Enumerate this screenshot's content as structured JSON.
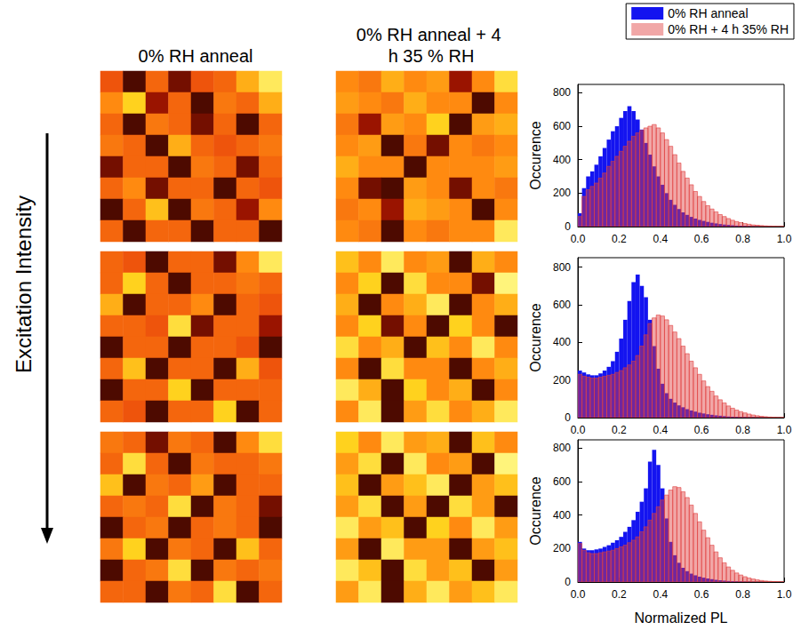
{
  "row_label": "Excitation Intensity",
  "chart_data": [
    {
      "type": "heatmap",
      "title": "0% RH anneal",
      "tick_labels": false,
      "color_range": [
        0,
        1
      ],
      "color": [
        "#000000",
        "#9a1400",
        "#e8420a",
        "#ff8a10",
        "#ffd21e",
        "#ffff9a"
      ],
      "cells": [
        [
          0.45,
          0.1,
          0.5,
          0.15,
          0.45,
          0.5,
          0.7,
          0.9
        ],
        [
          0.6,
          0.8,
          0.2,
          0.5,
          0.1,
          0.55,
          0.5,
          0.7
        ],
        [
          0.5,
          0.1,
          0.55,
          0.5,
          0.15,
          0.5,
          0.1,
          0.5
        ],
        [
          0.55,
          0.5,
          0.1,
          0.7,
          0.5,
          0.45,
          0.5,
          0.55
        ],
        [
          0.15,
          0.5,
          0.5,
          0.1,
          0.55,
          0.5,
          0.15,
          0.5
        ],
        [
          0.5,
          0.6,
          0.15,
          0.5,
          0.5,
          0.1,
          0.5,
          0.45
        ],
        [
          0.1,
          0.5,
          0.75,
          0.1,
          0.55,
          0.5,
          0.2,
          0.6
        ],
        [
          0.5,
          0.1,
          0.5,
          0.5,
          0.1,
          0.5,
          0.5,
          0.1
        ]
      ]
    },
    {
      "type": "heatmap",
      "title": "0% RH anneal + 4 h 35 % RH",
      "tick_labels": false,
      "color_range": [
        0,
        1
      ],
      "color": [
        "#000000",
        "#9a1400",
        "#e8420a",
        "#ff8a10",
        "#ffd21e",
        "#ffff9a"
      ],
      "cells": [
        [
          0.6,
          0.55,
          0.7,
          0.6,
          0.65,
          0.2,
          0.6,
          0.85
        ],
        [
          0.65,
          0.6,
          0.55,
          0.7,
          0.6,
          0.6,
          0.1,
          0.6
        ],
        [
          0.55,
          0.2,
          0.65,
          0.6,
          0.8,
          0.1,
          0.65,
          0.7
        ],
        [
          0.6,
          0.65,
          0.1,
          0.55,
          0.15,
          0.6,
          0.55,
          0.6
        ],
        [
          0.7,
          0.6,
          0.6,
          0.1,
          0.6,
          0.6,
          0.6,
          0.65
        ],
        [
          0.6,
          0.15,
          0.1,
          0.65,
          0.6,
          0.15,
          0.6,
          0.55
        ],
        [
          0.55,
          0.6,
          0.2,
          0.7,
          0.65,
          0.6,
          0.1,
          0.6
        ],
        [
          0.6,
          0.55,
          0.1,
          0.6,
          0.55,
          0.6,
          0.6,
          0.9
        ]
      ]
    },
    {
      "type": "heatmap",
      "tick_labels": false,
      "color_range": [
        0,
        1
      ],
      "color": [
        "#000000",
        "#9a1400",
        "#e8420a",
        "#ff8a10",
        "#ffd21e",
        "#ffff9a"
      ],
      "cells": [
        [
          0.5,
          0.45,
          0.1,
          0.5,
          0.5,
          0.15,
          0.6,
          0.9
        ],
        [
          0.5,
          0.8,
          0.5,
          0.1,
          0.5,
          0.5,
          0.55,
          0.5
        ],
        [
          0.7,
          0.1,
          0.5,
          0.5,
          0.6,
          0.1,
          0.5,
          0.45
        ],
        [
          0.5,
          0.5,
          0.45,
          0.85,
          0.15,
          0.5,
          0.5,
          0.2
        ],
        [
          0.1,
          0.5,
          0.5,
          0.1,
          0.5,
          0.5,
          0.45,
          0.1
        ],
        [
          0.5,
          0.75,
          0.1,
          0.5,
          0.5,
          0.1,
          0.7,
          0.45
        ],
        [
          0.1,
          0.5,
          0.5,
          0.8,
          0.1,
          0.5,
          0.5,
          0.5
        ],
        [
          0.5,
          0.45,
          0.1,
          0.5,
          0.5,
          0.8,
          0.1,
          0.5
        ]
      ]
    },
    {
      "type": "heatmap",
      "tick_labels": false,
      "color_range": [
        0,
        1
      ],
      "color": [
        "#000000",
        "#9a1400",
        "#e8420a",
        "#ff8a10",
        "#ffd21e",
        "#ffff9a"
      ],
      "cells": [
        [
          0.75,
          0.6,
          0.9,
          0.6,
          0.65,
          0.1,
          0.7,
          0.6
        ],
        [
          0.6,
          0.8,
          0.1,
          0.85,
          0.6,
          0.6,
          0.15,
          0.95
        ],
        [
          0.7,
          0.1,
          0.6,
          0.7,
          0.9,
          0.1,
          0.6,
          0.7
        ],
        [
          0.6,
          0.8,
          0.15,
          0.6,
          0.1,
          0.8,
          0.6,
          0.1
        ],
        [
          0.85,
          0.6,
          0.7,
          0.1,
          0.75,
          0.6,
          0.9,
          0.6
        ],
        [
          0.6,
          0.1,
          0.85,
          0.6,
          0.6,
          0.1,
          0.6,
          0.7
        ],
        [
          0.9,
          0.7,
          0.1,
          0.8,
          0.6,
          0.7,
          0.1,
          0.6
        ],
        [
          0.6,
          0.9,
          0.1,
          0.65,
          0.85,
          0.6,
          0.7,
          0.9
        ]
      ]
    },
    {
      "type": "heatmap",
      "tick_labels": false,
      "color_range": [
        0,
        1
      ],
      "color": [
        "#000000",
        "#9a1400",
        "#e8420a",
        "#ff8a10",
        "#ffd21e",
        "#ffff9a"
      ],
      "cells": [
        [
          0.55,
          0.5,
          0.15,
          0.55,
          0.5,
          0.1,
          0.6,
          0.85
        ],
        [
          0.5,
          0.85,
          0.5,
          0.1,
          0.55,
          0.5,
          0.5,
          0.55
        ],
        [
          0.75,
          0.1,
          0.55,
          0.5,
          0.65,
          0.1,
          0.5,
          0.5
        ],
        [
          0.5,
          0.55,
          0.5,
          0.85,
          0.1,
          0.55,
          0.5,
          0.15
        ],
        [
          0.1,
          0.5,
          0.55,
          0.1,
          0.5,
          0.55,
          0.5,
          0.1
        ],
        [
          0.55,
          0.8,
          0.1,
          0.55,
          0.5,
          0.1,
          0.75,
          0.5
        ],
        [
          0.1,
          0.5,
          0.55,
          0.85,
          0.1,
          0.55,
          0.5,
          0.55
        ],
        [
          0.5,
          0.5,
          0.1,
          0.55,
          0.5,
          0.85,
          0.1,
          0.5
        ]
      ]
    },
    {
      "type": "heatmap",
      "tick_labels": false,
      "color_range": [
        0,
        1
      ],
      "color": [
        "#000000",
        "#9a1400",
        "#e8420a",
        "#ff8a10",
        "#ffd21e",
        "#ffff9a"
      ],
      "cells": [
        [
          0.8,
          0.6,
          0.9,
          0.65,
          0.7,
          0.1,
          0.75,
          0.6
        ],
        [
          0.65,
          0.85,
          0.1,
          0.9,
          0.6,
          0.65,
          0.1,
          0.95
        ],
        [
          0.75,
          0.1,
          0.65,
          0.75,
          0.9,
          0.1,
          0.65,
          0.75
        ],
        [
          0.65,
          0.85,
          0.1,
          0.65,
          0.1,
          0.85,
          0.65,
          0.1
        ],
        [
          0.9,
          0.65,
          0.75,
          0.1,
          0.8,
          0.6,
          0.9,
          0.65
        ],
        [
          0.65,
          0.1,
          0.9,
          0.65,
          0.65,
          0.1,
          0.65,
          0.75
        ],
        [
          0.9,
          0.75,
          0.1,
          0.85,
          0.65,
          0.75,
          0.1,
          0.65
        ],
        [
          0.65,
          0.9,
          0.1,
          0.7,
          0.9,
          0.65,
          0.75,
          0.9
        ]
      ]
    },
    {
      "type": "histogram",
      "legend": "top",
      "ylabel": "Occurence",
      "bins": [
        0,
        0.02,
        0.04,
        0.06,
        0.08,
        0.1,
        0.12,
        0.14,
        0.16,
        0.18,
        0.2,
        0.22,
        0.24,
        0.26,
        0.28,
        0.3,
        0.32,
        0.34,
        0.36,
        0.38,
        0.4,
        0.42,
        0.44,
        0.46,
        0.48,
        0.5,
        0.52,
        0.54,
        0.56,
        0.58,
        0.6,
        0.62,
        0.64,
        0.66,
        0.68,
        0.7,
        0.72,
        0.74,
        0.76,
        0.78,
        0.8,
        0.82,
        0.84,
        0.86,
        0.88,
        0.9,
        0.92,
        0.94,
        0.96,
        0.98,
        1
      ],
      "xlim": [
        0,
        1
      ],
      "xticks": [
        {
          "value": 0,
          "label": "0.0"
        },
        0.2,
        0.4,
        0.6,
        0.8,
        {
          "value": 1,
          "label": "1.0"
        }
      ],
      "ylim": [
        0,
        850
      ],
      "yticks": [
        0,
        200,
        400,
        600,
        800
      ],
      "series": [
        {
          "name": "0% RH anneal",
          "color": "#1414f0",
          "values": [
            80,
            230,
            300,
            330,
            370,
            420,
            470,
            520,
            570,
            600,
            650,
            690,
            720,
            690,
            640,
            580,
            500,
            430,
            360,
            300,
            250,
            200,
            160,
            130,
            105,
            85,
            70,
            58,
            48,
            40,
            34,
            28,
            23,
            19,
            15,
            12,
            10,
            8,
            6,
            5,
            4,
            3,
            2,
            2,
            1,
            1,
            1,
            0,
            0,
            0
          ]
        },
        {
          "name": "0% RH + 4 h 35% RH",
          "color": "#e03c3c",
          "values": [
            60,
            180,
            220,
            240,
            260,
            290,
            320,
            360,
            390,
            420,
            450,
            480,
            510,
            540,
            560,
            575,
            590,
            600,
            610,
            590,
            560,
            520,
            480,
            430,
            380,
            330,
            290,
            250,
            210,
            180,
            150,
            125,
            105,
            88,
            72,
            60,
            48,
            38,
            30,
            24,
            18,
            14,
            10,
            8,
            6,
            4,
            3,
            2,
            1,
            1
          ]
        }
      ]
    },
    {
      "type": "histogram",
      "ylabel": "Occurence",
      "bins": [
        0,
        0.02,
        0.04,
        0.06,
        0.08,
        0.1,
        0.12,
        0.14,
        0.16,
        0.18,
        0.2,
        0.22,
        0.24,
        0.26,
        0.28,
        0.3,
        0.32,
        0.34,
        0.36,
        0.38,
        0.4,
        0.42,
        0.44,
        0.46,
        0.48,
        0.5,
        0.52,
        0.54,
        0.56,
        0.58,
        0.6,
        0.62,
        0.64,
        0.66,
        0.68,
        0.7,
        0.72,
        0.74,
        0.76,
        0.78,
        0.8,
        0.82,
        0.84,
        0.86,
        0.88,
        0.9,
        0.92,
        0.94,
        0.96,
        0.98,
        1
      ],
      "xlim": [
        0,
        1
      ],
      "xticks": [
        {
          "value": 0,
          "label": "0.0"
        },
        0.2,
        0.4,
        0.6,
        0.8,
        {
          "value": 1,
          "label": "1.0"
        }
      ],
      "ylim": [
        0,
        850
      ],
      "yticks": [
        0,
        200,
        400,
        600,
        800
      ],
      "series": [
        {
          "name": "0% RH anneal",
          "color": "#1414f0",
          "values": [
            250,
            240,
            230,
            225,
            225,
            235,
            250,
            270,
            300,
            350,
            420,
            520,
            620,
            720,
            760,
            700,
            640,
            520,
            380,
            260,
            180,
            130,
            100,
            80,
            65,
            55,
            45,
            38,
            32,
            26,
            22,
            18,
            15,
            12,
            10,
            8,
            6,
            5,
            4,
            3,
            3,
            2,
            2,
            1,
            1,
            1,
            0,
            0,
            0,
            0
          ]
        },
        {
          "name": "0% RH + 4 h 35% RH",
          "color": "#e03c3c",
          "values": [
            230,
            220,
            215,
            210,
            210,
            215,
            220,
            225,
            230,
            240,
            250,
            265,
            280,
            300,
            330,
            380,
            440,
            500,
            530,
            545,
            540,
            520,
            490,
            455,
            420,
            380,
            340,
            300,
            265,
            230,
            195,
            165,
            140,
            115,
            95,
            78,
            62,
            50,
            40,
            32,
            25,
            19,
            14,
            10,
            7,
            5,
            3,
            2,
            1,
            1
          ]
        }
      ]
    },
    {
      "type": "histogram",
      "ylabel": "Occurence",
      "xlabel": "Normalized PL",
      "bins": [
        0,
        0.02,
        0.04,
        0.06,
        0.08,
        0.1,
        0.12,
        0.14,
        0.16,
        0.18,
        0.2,
        0.22,
        0.24,
        0.26,
        0.28,
        0.3,
        0.32,
        0.34,
        0.36,
        0.38,
        0.4,
        0.42,
        0.44,
        0.46,
        0.48,
        0.5,
        0.52,
        0.54,
        0.56,
        0.58,
        0.6,
        0.62,
        0.64,
        0.66,
        0.68,
        0.7,
        0.72,
        0.74,
        0.76,
        0.78,
        0.8,
        0.82,
        0.84,
        0.86,
        0.88,
        0.9,
        0.92,
        0.94,
        0.96,
        0.98,
        1
      ],
      "xlim": [
        0,
        1
      ],
      "xticks": [
        {
          "value": 0,
          "label": "0.0"
        },
        0.2,
        0.4,
        0.6,
        0.8,
        {
          "value": 1,
          "label": "1.0"
        }
      ],
      "ylim": [
        0,
        850
      ],
      "yticks": [
        0,
        200,
        400,
        600,
        800
      ],
      "series": [
        {
          "name": "0% RH anneal",
          "color": "#1414f0",
          "values": [
            240,
            200,
            190,
            190,
            195,
            200,
            210,
            220,
            235,
            250,
            270,
            300,
            330,
            370,
            420,
            480,
            560,
            720,
            790,
            700,
            560,
            380,
            240,
            160,
            115,
            85,
            65,
            50,
            40,
            32,
            26,
            21,
            17,
            13,
            10,
            8,
            6,
            5,
            4,
            3,
            2,
            2,
            1,
            1,
            1,
            0,
            0,
            0,
            0,
            0
          ]
        },
        {
          "name": "0% RH + 4 h 35% RH",
          "color": "#e03c3c",
          "values": [
            230,
            190,
            175,
            170,
            170,
            175,
            180,
            185,
            190,
            200,
            210,
            220,
            235,
            250,
            270,
            300,
            330,
            370,
            410,
            450,
            490,
            520,
            550,
            570,
            565,
            540,
            505,
            460,
            410,
            360,
            310,
            265,
            220,
            180,
            145,
            115,
            90,
            70,
            54,
            42,
            32,
            24,
            18,
            13,
            9,
            6,
            4,
            3,
            2,
            1
          ]
        }
      ]
    }
  ]
}
